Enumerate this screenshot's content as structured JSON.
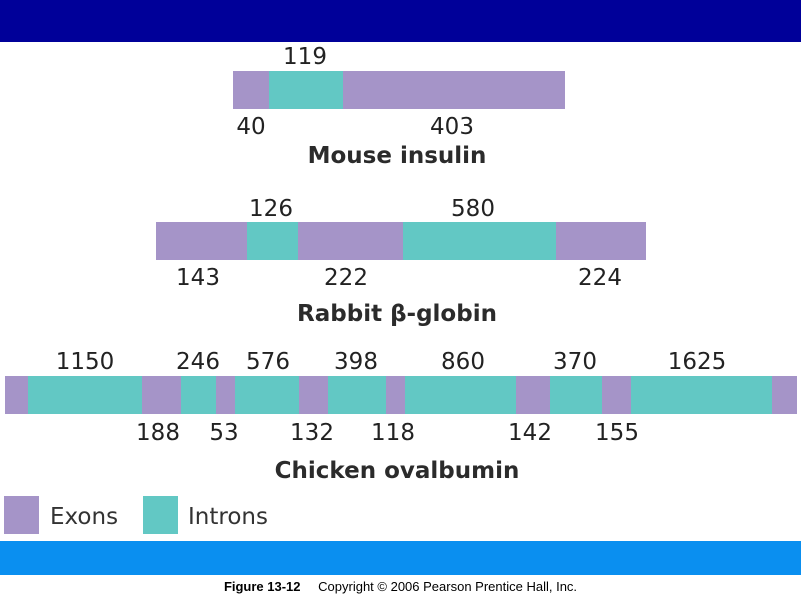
{
  "colors": {
    "exon": "#a594c8",
    "intron": "#62c8c4",
    "top_band": "#000099",
    "bottom_band": "#0a8ff0"
  },
  "genes": [
    {
      "title": "Mouse insulin",
      "segments": [
        "exon",
        "intron",
        "exon"
      ],
      "labels_above": [
        "119"
      ],
      "labels_below": [
        "40",
        "403"
      ]
    },
    {
      "title": "Rabbit β-globin",
      "segments": [
        "exon",
        "intron",
        "exon",
        "intron",
        "exon"
      ],
      "labels_above": [
        "126",
        "580"
      ],
      "labels_below": [
        "143",
        "222",
        "224"
      ]
    },
    {
      "title": "Chicken ovalbumin",
      "segments": [
        "exon",
        "intron",
        "exon",
        "intron",
        "exon",
        "intron",
        "exon",
        "intron",
        "exon",
        "intron",
        "exon",
        "intron",
        "exon",
        "intron",
        "exon"
      ],
      "labels_above": [
        "1150",
        "246",
        "576",
        "398",
        "860",
        "370",
        "1625"
      ],
      "labels_below": [
        "188",
        "53",
        "132",
        "118",
        "142",
        "155"
      ]
    }
  ],
  "legend": {
    "exon_label": "Exons",
    "intron_label": "Introns"
  },
  "caption": {
    "figure": "Figure 13-12",
    "copyright": "Copyright © 2006 Pearson Prentice Hall, Inc."
  }
}
